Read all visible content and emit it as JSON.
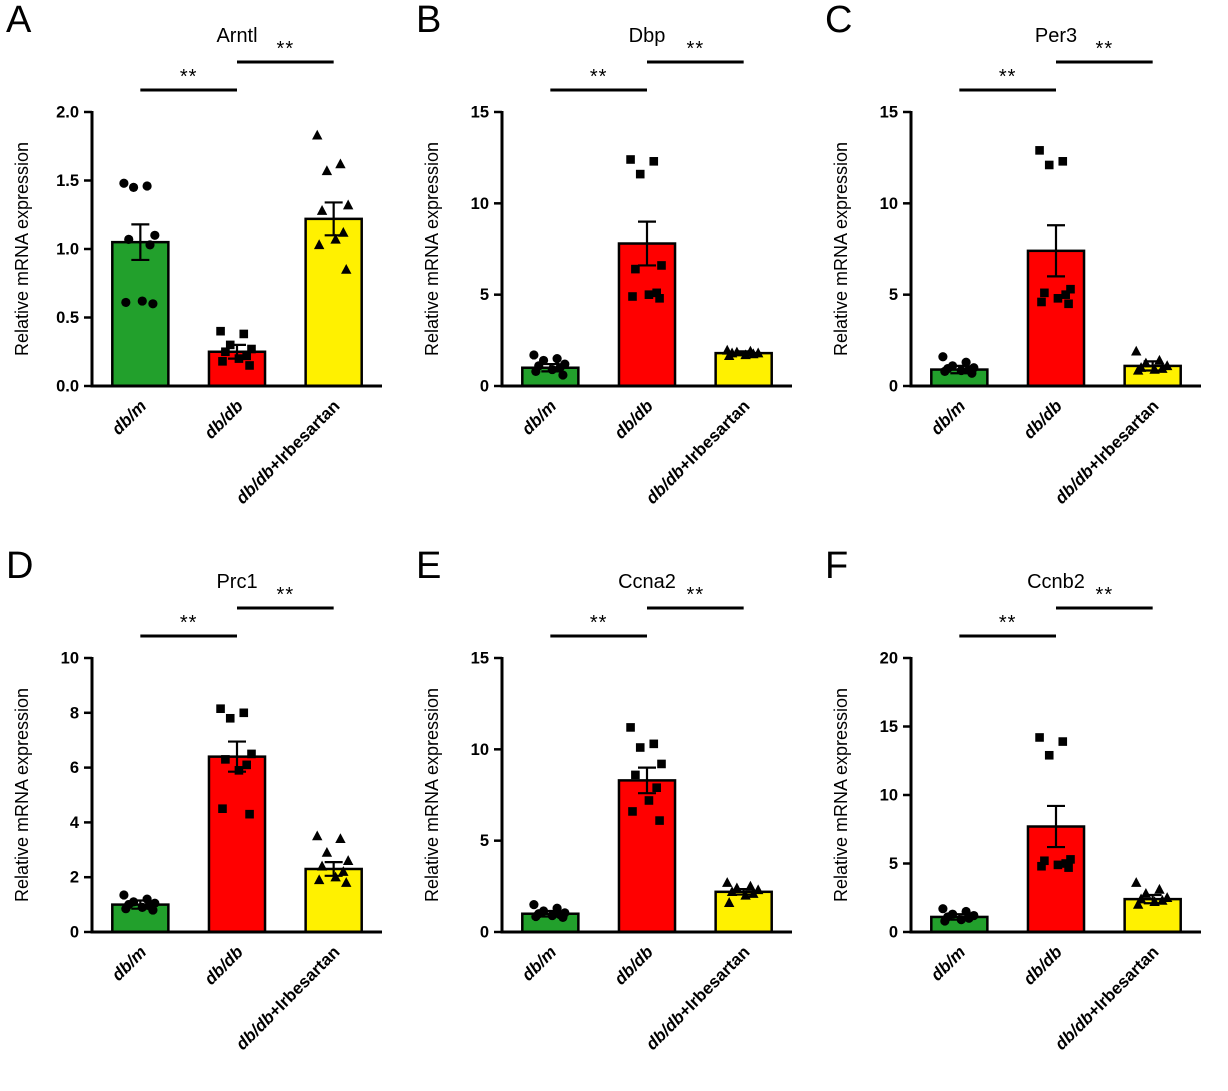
{
  "figure": {
    "background": "#ffffff",
    "letters": [
      "A",
      "B",
      "C",
      "D",
      "E",
      "F"
    ]
  },
  "colors": {
    "green": "#22A02C",
    "red": "#FF0000",
    "yellow": "#FFF100",
    "stroke": "#000000"
  },
  "chart_data": [
    {
      "type": "bar",
      "panel": "A",
      "title": "Arntl",
      "ylabel": "Relative mRNA expression",
      "categories": [
        {
          "italic": "db/m",
          "rest": ""
        },
        {
          "italic": "db/db",
          "rest": ""
        },
        {
          "italic": "db/db",
          "rest": "+Irbesartan"
        }
      ],
      "values": [
        1.05,
        0.25,
        1.22
      ],
      "errors": [
        0.13,
        0.05,
        0.12
      ],
      "scatter": [
        [
          1.48,
          1.46,
          1.45,
          1.1,
          1.07,
          1.03,
          0.62,
          0.61,
          0.6
        ],
        [
          0.4,
          0.38,
          0.3,
          0.27,
          0.25,
          0.22,
          0.2,
          0.18,
          0.15
        ],
        [
          1.83,
          1.62,
          1.57,
          1.32,
          1.28,
          1.12,
          1.07,
          1.03,
          0.85
        ]
      ],
      "markers": [
        "circle",
        "square",
        "triangle"
      ],
      "bar_colors": [
        "#22A02C",
        "#FF0000",
        "#FFF100"
      ],
      "ylim": [
        0,
        2.0
      ],
      "yticks": [
        0,
        0.5,
        1.0,
        1.5,
        2.0
      ],
      "ytick_labels": [
        "0.0",
        "0.5",
        "1.0",
        "1.5",
        "2.0"
      ],
      "significance": [
        {
          "from": 0,
          "to": 1,
          "label": "**",
          "level": 0
        },
        {
          "from": 1,
          "to": 2,
          "label": "**",
          "level": 1
        }
      ],
      "grid": false,
      "legend": "none"
    },
    {
      "type": "bar",
      "panel": "B",
      "title": "Dbp",
      "ylabel": "Relative mRNA expression",
      "categories": [
        {
          "italic": "db/m",
          "rest": ""
        },
        {
          "italic": "db/db",
          "rest": ""
        },
        {
          "italic": "db/db",
          "rest": "+Irbesartan"
        }
      ],
      "values": [
        1.0,
        7.8,
        1.8
      ],
      "errors": [
        0.2,
        1.2,
        0.1
      ],
      "scatter": [
        [
          1.7,
          1.5,
          1.4,
          1.2,
          1.1,
          1.0,
          0.9,
          0.8,
          0.6
        ],
        [
          12.4,
          12.3,
          11.6,
          6.6,
          6.4,
          5.1,
          5.0,
          4.9,
          4.8
        ],
        [
          1.95,
          1.9,
          1.85,
          1.8,
          1.8,
          1.75,
          1.7,
          1.65
        ]
      ],
      "markers": [
        "circle",
        "square",
        "triangle"
      ],
      "bar_colors": [
        "#22A02C",
        "#FF0000",
        "#FFF100"
      ],
      "ylim": [
        0,
        15
      ],
      "yticks": [
        0,
        5,
        10,
        15
      ],
      "ytick_labels": [
        "0",
        "5",
        "10",
        "15"
      ],
      "significance": [
        {
          "from": 0,
          "to": 1,
          "label": "**",
          "level": 0
        },
        {
          "from": 1,
          "to": 2,
          "label": "**",
          "level": 1
        }
      ],
      "grid": false,
      "legend": "none"
    },
    {
      "type": "bar",
      "panel": "C",
      "title": "Per3",
      "ylabel": "Relative mRNA expression",
      "categories": [
        {
          "italic": "db/m",
          "rest": ""
        },
        {
          "italic": "db/db",
          "rest": ""
        },
        {
          "italic": "db/db",
          "rest": "+Irbesartan"
        }
      ],
      "values": [
        0.9,
        7.4,
        1.1
      ],
      "errors": [
        0.2,
        1.4,
        0.25
      ],
      "scatter": [
        [
          1.6,
          1.3,
          1.1,
          1.0,
          0.95,
          0.9,
          0.85,
          0.8,
          0.7
        ],
        [
          12.9,
          12.3,
          12.1,
          5.3,
          5.1,
          5.0,
          4.8,
          4.6,
          4.5
        ],
        [
          1.9,
          1.4,
          1.25,
          1.1,
          1.0,
          0.95,
          0.9,
          0.85
        ]
      ],
      "markers": [
        "circle",
        "square",
        "triangle"
      ],
      "bar_colors": [
        "#22A02C",
        "#FF0000",
        "#FFF100"
      ],
      "ylim": [
        0,
        15
      ],
      "yticks": [
        0,
        5,
        10,
        15
      ],
      "ytick_labels": [
        "0",
        "5",
        "10",
        "15"
      ],
      "significance": [
        {
          "from": 0,
          "to": 1,
          "label": "**",
          "level": 0
        },
        {
          "from": 1,
          "to": 2,
          "label": "**",
          "level": 1
        }
      ],
      "grid": false,
      "legend": "none"
    },
    {
      "type": "bar",
      "panel": "D",
      "title": "Prc1",
      "ylabel": "Relative mRNA expression",
      "categories": [
        {
          "italic": "db/m",
          "rest": ""
        },
        {
          "italic": "db/db",
          "rest": ""
        },
        {
          "italic": "db/db",
          "rest": "+Irbesartan"
        }
      ],
      "values": [
        1.0,
        6.4,
        2.3
      ],
      "errors": [
        0.15,
        0.55,
        0.25
      ],
      "scatter": [
        [
          1.35,
          1.2,
          1.1,
          1.05,
          1.0,
          0.95,
          0.9,
          0.85,
          0.8
        ],
        [
          8.15,
          8.0,
          7.8,
          6.5,
          6.3,
          6.1,
          5.9,
          4.5,
          4.3
        ],
        [
          3.5,
          3.4,
          2.9,
          2.6,
          2.4,
          2.2,
          2.0,
          1.9,
          1.8
        ]
      ],
      "markers": [
        "circle",
        "square",
        "triangle"
      ],
      "bar_colors": [
        "#22A02C",
        "#FF0000",
        "#FFF100"
      ],
      "ylim": [
        0,
        10
      ],
      "yticks": [
        0,
        2,
        4,
        6,
        8,
        10
      ],
      "ytick_labels": [
        "0",
        "2",
        "4",
        "6",
        "8",
        "10"
      ],
      "significance": [
        {
          "from": 0,
          "to": 1,
          "label": "**",
          "level": 0
        },
        {
          "from": 1,
          "to": 2,
          "label": "**",
          "level": 1
        }
      ],
      "grid": false,
      "legend": "none"
    },
    {
      "type": "bar",
      "panel": "E",
      "title": "Ccna2",
      "ylabel": "Relative mRNA expression",
      "categories": [
        {
          "italic": "db/m",
          "rest": ""
        },
        {
          "italic": "db/db",
          "rest": ""
        },
        {
          "italic": "db/db",
          "rest": "+Irbesartan"
        }
      ],
      "values": [
        1.0,
        8.3,
        2.2
      ],
      "errors": [
        0.15,
        0.7,
        0.15
      ],
      "scatter": [
        [
          1.5,
          1.3,
          1.15,
          1.05,
          1.0,
          0.95,
          0.9,
          0.85,
          0.8
        ],
        [
          11.2,
          10.3,
          10.1,
          9.2,
          8.6,
          7.9,
          7.2,
          6.6,
          6.1
        ],
        [
          2.7,
          2.5,
          2.4,
          2.3,
          2.2,
          2.1,
          2.0,
          1.6
        ]
      ],
      "markers": [
        "circle",
        "square",
        "triangle"
      ],
      "bar_colors": [
        "#22A02C",
        "#FF0000",
        "#FFF100"
      ],
      "ylim": [
        0,
        15
      ],
      "yticks": [
        0,
        5,
        10,
        15
      ],
      "ytick_labels": [
        "0",
        "5",
        "10",
        "15"
      ],
      "significance": [
        {
          "from": 0,
          "to": 1,
          "label": "**",
          "level": 0
        },
        {
          "from": 1,
          "to": 2,
          "label": "**",
          "level": 1
        }
      ],
      "grid": false,
      "legend": "none"
    },
    {
      "type": "bar",
      "panel": "F",
      "title": "Ccnb2",
      "ylabel": "Relative mRNA expression",
      "categories": [
        {
          "italic": "db/m",
          "rest": ""
        },
        {
          "italic": "db/db",
          "rest": ""
        },
        {
          "italic": "db/db",
          "rest": "+Irbesartan"
        }
      ],
      "values": [
        1.1,
        7.7,
        2.4
      ],
      "errors": [
        0.2,
        1.5,
        0.3
      ],
      "scatter": [
        [
          1.7,
          1.5,
          1.3,
          1.2,
          1.1,
          1.0,
          0.9,
          0.8
        ],
        [
          14.2,
          13.9,
          12.9,
          5.3,
          5.2,
          5.0,
          4.9,
          4.8,
          4.7
        ],
        [
          3.6,
          3.1,
          2.8,
          2.5,
          2.4,
          2.3,
          2.2,
          2.0
        ]
      ],
      "markers": [
        "circle",
        "square",
        "triangle"
      ],
      "bar_colors": [
        "#22A02C",
        "#FF0000",
        "#FFF100"
      ],
      "ylim": [
        0,
        20
      ],
      "yticks": [
        0,
        5,
        10,
        15,
        20
      ],
      "ytick_labels": [
        "0",
        "5",
        "10",
        "15",
        "20"
      ],
      "significance": [
        {
          "from": 0,
          "to": 1,
          "label": "**",
          "level": 0
        },
        {
          "from": 1,
          "to": 2,
          "label": "**",
          "level": 1
        }
      ],
      "grid": false,
      "legend": "none"
    }
  ]
}
